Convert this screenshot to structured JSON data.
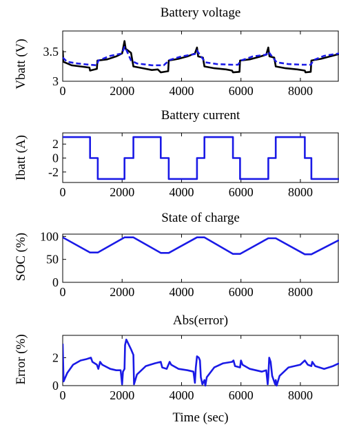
{
  "colors": {
    "measured": "#000000",
    "estimated": "#1a1ae6",
    "axes": "#000000",
    "background": "#ffffff"
  },
  "chart_data": [
    {
      "type": "line",
      "title": "Battery voltage",
      "xlabel": "",
      "ylabel": "Vbatt (V)",
      "xlim": [
        0,
        9300
      ],
      "ylim": [
        3,
        3.85
      ],
      "xticks": [
        0,
        2000,
        4000,
        6000,
        8000
      ],
      "yticks": [
        3,
        3.5
      ],
      "ytick_labels": [
        "3",
        "3.5"
      ],
      "series": [
        {
          "color": "#000000",
          "style": "solid",
          "points": [
            [
              0,
              3.52
            ],
            [
              20,
              3.33
            ],
            [
              300,
              3.27
            ],
            [
              600,
              3.25
            ],
            [
              900,
              3.23
            ],
            [
              920,
              3.18
            ],
            [
              1150,
              3.21
            ],
            [
              1170,
              3.35
            ],
            [
              1500,
              3.37
            ],
            [
              1800,
              3.42
            ],
            [
              2000,
              3.47
            ],
            [
              2080,
              3.68
            ],
            [
              2120,
              3.55
            ],
            [
              2300,
              3.48
            ],
            [
              2380,
              3.25
            ],
            [
              2700,
              3.22
            ],
            [
              3000,
              3.19
            ],
            [
              3200,
              3.2
            ],
            [
              3300,
              3.15
            ],
            [
              3550,
              3.17
            ],
            [
              3570,
              3.35
            ],
            [
              3900,
              3.38
            ],
            [
              4200,
              3.42
            ],
            [
              4450,
              3.47
            ],
            [
              4520,
              3.57
            ],
            [
              4560,
              3.42
            ],
            [
              4720,
              3.4
            ],
            [
              4770,
              3.25
            ],
            [
              5100,
              3.22
            ],
            [
              5500,
              3.2
            ],
            [
              5700,
              3.18
            ],
            [
              5730,
              3.15
            ],
            [
              5950,
              3.16
            ],
            [
              5970,
              3.35
            ],
            [
              6300,
              3.37
            ],
            [
              6600,
              3.41
            ],
            [
              6850,
              3.45
            ],
            [
              6920,
              3.57
            ],
            [
              6960,
              3.42
            ],
            [
              7120,
              3.4
            ],
            [
              7170,
              3.25
            ],
            [
              7500,
              3.22
            ],
            [
              7900,
              3.2
            ],
            [
              8150,
              3.18
            ],
            [
              8170,
              3.15
            ],
            [
              8350,
              3.16
            ],
            [
              8370,
              3.35
            ],
            [
              8700,
              3.38
            ],
            [
              9000,
              3.42
            ],
            [
              9300,
              3.46
            ]
          ]
        },
        {
          "color": "#1a1ae6",
          "style": "dashed",
          "points": [
            [
              0,
              3.4
            ],
            [
              150,
              3.33
            ],
            [
              500,
              3.3
            ],
            [
              900,
              3.28
            ],
            [
              1150,
              3.27
            ],
            [
              1200,
              3.35
            ],
            [
              1600,
              3.43
            ],
            [
              2000,
              3.47
            ],
            [
              2080,
              3.58
            ],
            [
              2150,
              3.52
            ],
            [
              2300,
              3.35
            ],
            [
              2500,
              3.3
            ],
            [
              3000,
              3.27
            ],
            [
              3400,
              3.27
            ],
            [
              3600,
              3.36
            ],
            [
              4000,
              3.42
            ],
            [
              4450,
              3.46
            ],
            [
              4520,
              3.52
            ],
            [
              4600,
              3.46
            ],
            [
              4800,
              3.32
            ],
            [
              5200,
              3.29
            ],
            [
              5700,
              3.28
            ],
            [
              5900,
              3.28
            ],
            [
              6000,
              3.35
            ],
            [
              6400,
              3.42
            ],
            [
              6850,
              3.45
            ],
            [
              6930,
              3.5
            ],
            [
              7000,
              3.45
            ],
            [
              7200,
              3.32
            ],
            [
              7600,
              3.29
            ],
            [
              8100,
              3.28
            ],
            [
              8350,
              3.28
            ],
            [
              8450,
              3.36
            ],
            [
              8800,
              3.43
            ],
            [
              9300,
              3.47
            ]
          ]
        }
      ]
    },
    {
      "type": "line",
      "title": "Battery current",
      "xlabel": "",
      "ylabel": "Ibatt (A)",
      "xlim": [
        0,
        9300
      ],
      "ylim": [
        -3.5,
        3.6
      ],
      "xticks": [
        0,
        2000,
        4000,
        6000,
        8000
      ],
      "yticks": [
        -2,
        0,
        2
      ],
      "ytick_labels": [
        "-2",
        "0",
        "2"
      ],
      "series": [
        {
          "color": "#1a1ae6",
          "style": "solid",
          "points": [
            [
              0,
              3
            ],
            [
              920,
              3
            ],
            [
              920,
              0
            ],
            [
              1180,
              0
            ],
            [
              1180,
              -3
            ],
            [
              2080,
              -3
            ],
            [
              2080,
              0
            ],
            [
              2380,
              0
            ],
            [
              2380,
              3
            ],
            [
              3300,
              3
            ],
            [
              3300,
              0
            ],
            [
              3570,
              0
            ],
            [
              3570,
              -3
            ],
            [
              4520,
              -3
            ],
            [
              4520,
              0
            ],
            [
              4770,
              0
            ],
            [
              4770,
              3
            ],
            [
              5730,
              3
            ],
            [
              5730,
              0
            ],
            [
              5970,
              0
            ],
            [
              5970,
              -3
            ],
            [
              6920,
              -3
            ],
            [
              6920,
              0
            ],
            [
              7170,
              0
            ],
            [
              7170,
              3
            ],
            [
              8150,
              3
            ],
            [
              8150,
              0
            ],
            [
              8370,
              0
            ],
            [
              8370,
              -3
            ],
            [
              9300,
              -3
            ]
          ]
        }
      ]
    },
    {
      "type": "line",
      "title": "State of charge",
      "xlabel": "",
      "ylabel": "SOC (%)",
      "xlim": [
        0,
        9300
      ],
      "ylim": [
        0,
        105
      ],
      "xticks": [
        0,
        2000,
        4000,
        6000,
        8000
      ],
      "yticks": [
        0,
        50,
        100
      ],
      "ytick_labels": [
        "0",
        "50",
        "100"
      ],
      "series": [
        {
          "color": "#1a1ae6",
          "style": "solid",
          "points": [
            [
              0,
              98
            ],
            [
              920,
              65
            ],
            [
              1180,
              65
            ],
            [
              2080,
              98
            ],
            [
              2380,
              98
            ],
            [
              3300,
              64
            ],
            [
              3570,
              64
            ],
            [
              4520,
              98
            ],
            [
              4770,
              98
            ],
            [
              5730,
              62
            ],
            [
              5970,
              62
            ],
            [
              6920,
              96
            ],
            [
              7170,
              96
            ],
            [
              8150,
              61
            ],
            [
              8370,
              61
            ],
            [
              9300,
              92
            ]
          ]
        }
      ]
    },
    {
      "type": "line",
      "title": "Abs(error)",
      "xlabel": "Time (sec)",
      "ylabel": "Error (%)",
      "xlim": [
        0,
        9300
      ],
      "ylim": [
        0,
        3.6
      ],
      "xticks": [
        0,
        2000,
        4000,
        6000,
        8000
      ],
      "yticks": [
        0,
        2
      ],
      "ytick_labels": [
        "0",
        "2"
      ],
      "series": [
        {
          "color": "#1a1ae6",
          "style": "solid",
          "points": [
            [
              0,
              3.0
            ],
            [
              30,
              0.3
            ],
            [
              150,
              0.9
            ],
            [
              350,
              1.5
            ],
            [
              600,
              1.8
            ],
            [
              800,
              1.9
            ],
            [
              950,
              2.0
            ],
            [
              1000,
              1.7
            ],
            [
              1150,
              1.5
            ],
            [
              1200,
              1.2
            ],
            [
              1260,
              1.7
            ],
            [
              1330,
              1.5
            ],
            [
              1600,
              1.2
            ],
            [
              1800,
              1.1
            ],
            [
              1950,
              1.1
            ],
            [
              2000,
              0.1
            ],
            [
              2030,
              1.0
            ],
            [
              2080,
              1.2
            ],
            [
              2100,
              2.9
            ],
            [
              2140,
              3.3
            ],
            [
              2300,
              2.6
            ],
            [
              2380,
              2.2
            ],
            [
              2400,
              0.1
            ],
            [
              2500,
              0.8
            ],
            [
              2800,
              1.4
            ],
            [
              3100,
              1.6
            ],
            [
              3300,
              1.7
            ],
            [
              3350,
              1.3
            ],
            [
              3500,
              1.2
            ],
            [
              3600,
              1.7
            ],
            [
              3650,
              1.5
            ],
            [
              3900,
              1.2
            ],
            [
              4200,
              1.1
            ],
            [
              4400,
              1.0
            ],
            [
              4450,
              0.2
            ],
            [
              4480,
              1.3
            ],
            [
              4520,
              2.1
            ],
            [
              4580,
              2.0
            ],
            [
              4620,
              1.8
            ],
            [
              4650,
              0.6
            ],
            [
              4700,
              0.1
            ],
            [
              4770,
              0.4
            ],
            [
              4800,
              0.0
            ],
            [
              4850,
              0.6
            ],
            [
              5100,
              1.3
            ],
            [
              5400,
              1.6
            ],
            [
              5700,
              1.7
            ],
            [
              5750,
              1.8
            ],
            [
              5800,
              1.4
            ],
            [
              5970,
              1.3
            ],
            [
              6000,
              1.8
            ],
            [
              6050,
              1.5
            ],
            [
              6300,
              1.2
            ],
            [
              6700,
              1.0
            ],
            [
              6850,
              1.1
            ],
            [
              6900,
              0.1
            ],
            [
              6920,
              0.6
            ],
            [
              6950,
              2.0
            ],
            [
              7000,
              1.7
            ],
            [
              7050,
              0.7
            ],
            [
              7150,
              0.1
            ],
            [
              7170,
              0.4
            ],
            [
              7200,
              0.0
            ],
            [
              7300,
              0.7
            ],
            [
              7600,
              1.3
            ],
            [
              8000,
              1.5
            ],
            [
              8150,
              1.8
            ],
            [
              8250,
              1.5
            ],
            [
              8370,
              1.4
            ],
            [
              8400,
              1.7
            ],
            [
              8500,
              1.4
            ],
            [
              8800,
              1.2
            ],
            [
              9100,
              1.4
            ],
            [
              9300,
              1.6
            ]
          ]
        }
      ]
    }
  ]
}
